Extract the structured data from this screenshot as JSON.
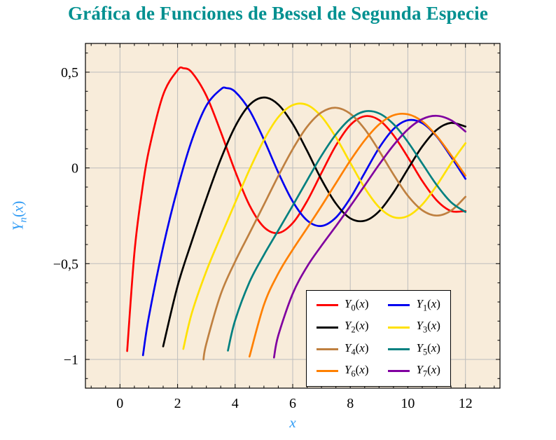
{
  "chart_data": {
    "type": "line",
    "title": "Gráfica de Funciones de Bessel de Segunda Especie",
    "title_color": "#009090",
    "xlabel": "x",
    "ylabel_sub": "n",
    "math": {
      "func": "Y",
      "open": "(",
      "arg": "x",
      "close": ")"
    },
    "xlim": [
      -1.2,
      13.2
    ],
    "ylim": [
      -1.15,
      0.65
    ],
    "plot_bg": "#f8ecda",
    "grid_color": "#bdbdbd",
    "axis_label_color": "#2f9bf5",
    "grid": true,
    "legend_position": "south east",
    "x_ticks": {
      "values": [
        0,
        2,
        4,
        6,
        8,
        10,
        12
      ],
      "labels": [
        "0",
        "2",
        "4",
        "6",
        "8",
        "10",
        "12"
      ]
    },
    "y_ticks": {
      "values": [
        0.5,
        0,
        -0.5,
        -1
      ],
      "labels": [
        "0,5",
        "0",
        "−0,5",
        "−1"
      ]
    },
    "minor_x_step": 0.5,
    "minor_y_step": 0.1,
    "series": [
      {
        "name": "Y_0(x)",
        "sub": "0",
        "color": "#fe0000",
        "points": [
          [
            0.25,
            -0.956
          ],
          [
            0.5,
            -0.445
          ],
          [
            0.75,
            -0.137
          ],
          [
            1.0,
            0.088
          ],
          [
            1.5,
            0.382
          ],
          [
            2.0,
            0.51
          ],
          [
            2.2,
            0.521
          ],
          [
            2.5,
            0.498
          ],
          [
            3.0,
            0.377
          ],
          [
            3.5,
            0.189
          ],
          [
            4.0,
            -0.017
          ],
          [
            4.5,
            -0.195
          ],
          [
            5.0,
            -0.309
          ],
          [
            5.5,
            -0.34
          ],
          [
            6.0,
            -0.288
          ],
          [
            6.5,
            -0.173
          ],
          [
            7.0,
            -0.026
          ],
          [
            7.5,
            0.117
          ],
          [
            8.0,
            0.224
          ],
          [
            8.5,
            0.27
          ],
          [
            9.0,
            0.25
          ],
          [
            9.5,
            0.171
          ],
          [
            10.0,
            0.056
          ],
          [
            10.5,
            -0.068
          ],
          [
            11.0,
            -0.169
          ],
          [
            11.5,
            -0.225
          ],
          [
            12.0,
            -0.225
          ]
        ]
      },
      {
        "name": "Y_1(x)",
        "sub": "1",
        "color": "#0000f0",
        "points": [
          [
            0.8,
            -0.978
          ],
          [
            1.0,
            -0.781
          ],
          [
            1.5,
            -0.412
          ],
          [
            2.0,
            -0.107
          ],
          [
            2.5,
            0.146
          ],
          [
            3.0,
            0.325
          ],
          [
            3.5,
            0.41
          ],
          [
            3.7,
            0.417
          ],
          [
            4.0,
            0.398
          ],
          [
            4.5,
            0.301
          ],
          [
            5.0,
            0.148
          ],
          [
            5.5,
            -0.024
          ],
          [
            6.0,
            -0.175
          ],
          [
            6.5,
            -0.274
          ],
          [
            7.0,
            -0.303
          ],
          [
            7.5,
            -0.259
          ],
          [
            8.0,
            -0.158
          ],
          [
            8.5,
            -0.026
          ],
          [
            9.0,
            0.104
          ],
          [
            9.5,
            0.203
          ],
          [
            10.0,
            0.249
          ],
          [
            10.5,
            0.234
          ],
          [
            11.0,
            0.164
          ],
          [
            11.5,
            0.058
          ],
          [
            12.0,
            -0.057
          ]
        ]
      },
      {
        "name": "Y_2(x)",
        "sub": "2",
        "color": "#000000",
        "points": [
          [
            1.5,
            -0.932
          ],
          [
            2.0,
            -0.617
          ],
          [
            2.5,
            -0.381
          ],
          [
            3.0,
            -0.16
          ],
          [
            3.5,
            0.045
          ],
          [
            4.0,
            0.216
          ],
          [
            4.5,
            0.329
          ],
          [
            5.0,
            0.368
          ],
          [
            5.5,
            0.331
          ],
          [
            6.0,
            0.23
          ],
          [
            6.5,
            0.089
          ],
          [
            7.0,
            -0.061
          ],
          [
            7.5,
            -0.186
          ],
          [
            8.0,
            -0.263
          ],
          [
            8.5,
            -0.276
          ],
          [
            9.0,
            -0.227
          ],
          [
            9.5,
            -0.128
          ],
          [
            10.0,
            -0.006
          ],
          [
            10.5,
            0.112
          ],
          [
            11.0,
            0.199
          ],
          [
            11.5,
            0.235
          ],
          [
            12.0,
            0.216
          ]
        ]
      },
      {
        "name": "Y_3(x)",
        "sub": "3",
        "color": "#ffe100",
        "points": [
          [
            2.2,
            -0.945
          ],
          [
            2.5,
            -0.756
          ],
          [
            3.0,
            -0.539
          ],
          [
            3.5,
            -0.358
          ],
          [
            4.0,
            -0.182
          ],
          [
            4.5,
            -0.009
          ],
          [
            5.0,
            0.146
          ],
          [
            5.5,
            0.265
          ],
          [
            6.0,
            0.328
          ],
          [
            6.5,
            0.329
          ],
          [
            7.0,
            0.268
          ],
          [
            7.5,
            0.16
          ],
          [
            8.0,
            0.027
          ],
          [
            8.5,
            -0.104
          ],
          [
            9.0,
            -0.205
          ],
          [
            9.5,
            -0.257
          ],
          [
            10.0,
            -0.251
          ],
          [
            10.5,
            -0.191
          ],
          [
            11.0,
            -0.092
          ],
          [
            11.5,
            0.024
          ],
          [
            12.0,
            0.129
          ]
        ]
      },
      {
        "name": "Y_4(x)",
        "sub": "4",
        "color": "#bf8040",
        "points": [
          [
            2.9,
            -1.0
          ],
          [
            3.0,
            -0.917
          ],
          [
            3.5,
            -0.66
          ],
          [
            4.0,
            -0.489
          ],
          [
            4.5,
            -0.341
          ],
          [
            5.0,
            -0.192
          ],
          [
            5.5,
            -0.042
          ],
          [
            6.0,
            0.098
          ],
          [
            6.5,
            0.215
          ],
          [
            7.0,
            0.29
          ],
          [
            7.5,
            0.314
          ],
          [
            8.0,
            0.283
          ],
          [
            8.5,
            0.203
          ],
          [
            9.0,
            0.09
          ],
          [
            9.5,
            -0.034
          ],
          [
            10.0,
            -0.145
          ],
          [
            10.5,
            -0.221
          ],
          [
            11.0,
            -0.249
          ],
          [
            11.5,
            -0.223
          ],
          [
            12.0,
            -0.151
          ]
        ]
      },
      {
        "name": "Y_5(x)",
        "sub": "5",
        "color": "#008080",
        "points": [
          [
            3.75,
            -0.954
          ],
          [
            4.0,
            -0.796
          ],
          [
            4.5,
            -0.596
          ],
          [
            5.0,
            -0.454
          ],
          [
            5.5,
            -0.326
          ],
          [
            6.0,
            -0.197
          ],
          [
            6.5,
            -0.065
          ],
          [
            7.0,
            0.064
          ],
          [
            7.5,
            0.175
          ],
          [
            8.0,
            0.256
          ],
          [
            8.5,
            0.295
          ],
          [
            9.0,
            0.285
          ],
          [
            9.5,
            0.229
          ],
          [
            10.0,
            0.136
          ],
          [
            10.5,
            0.023
          ],
          [
            11.0,
            -0.089
          ],
          [
            11.5,
            -0.179
          ],
          [
            12.0,
            -0.23
          ]
        ]
      },
      {
        "name": "Y_6(x)",
        "sub": "6",
        "color": "#ff8000",
        "points": [
          [
            4.5,
            -0.985
          ],
          [
            5.0,
            -0.715
          ],
          [
            5.5,
            -0.551
          ],
          [
            6.0,
            -0.427
          ],
          [
            6.5,
            -0.314
          ],
          [
            7.0,
            -0.199
          ],
          [
            7.5,
            -0.08
          ],
          [
            8.0,
            0.038
          ],
          [
            8.5,
            0.144
          ],
          [
            9.0,
            0.227
          ],
          [
            9.5,
            0.275
          ],
          [
            10.0,
            0.28
          ],
          [
            10.5,
            0.243
          ],
          [
            11.0,
            0.167
          ],
          [
            11.5,
            0.067
          ],
          [
            12.0,
            -0.04
          ]
        ]
      },
      {
        "name": "Y_7(x)",
        "sub": "7",
        "color": "#8000a0",
        "points": [
          [
            5.35,
            -0.99
          ],
          [
            5.5,
            -0.875
          ],
          [
            6.0,
            -0.657
          ],
          [
            6.5,
            -0.515
          ],
          [
            7.0,
            -0.406
          ],
          [
            7.5,
            -0.304
          ],
          [
            8.0,
            -0.2
          ],
          [
            8.5,
            -0.092
          ],
          [
            9.0,
            0.017
          ],
          [
            9.5,
            0.118
          ],
          [
            10.0,
            0.201
          ],
          [
            10.5,
            0.255
          ],
          [
            11.0,
            0.272
          ],
          [
            11.5,
            0.249
          ],
          [
            12.0,
            0.19
          ]
        ]
      }
    ]
  }
}
